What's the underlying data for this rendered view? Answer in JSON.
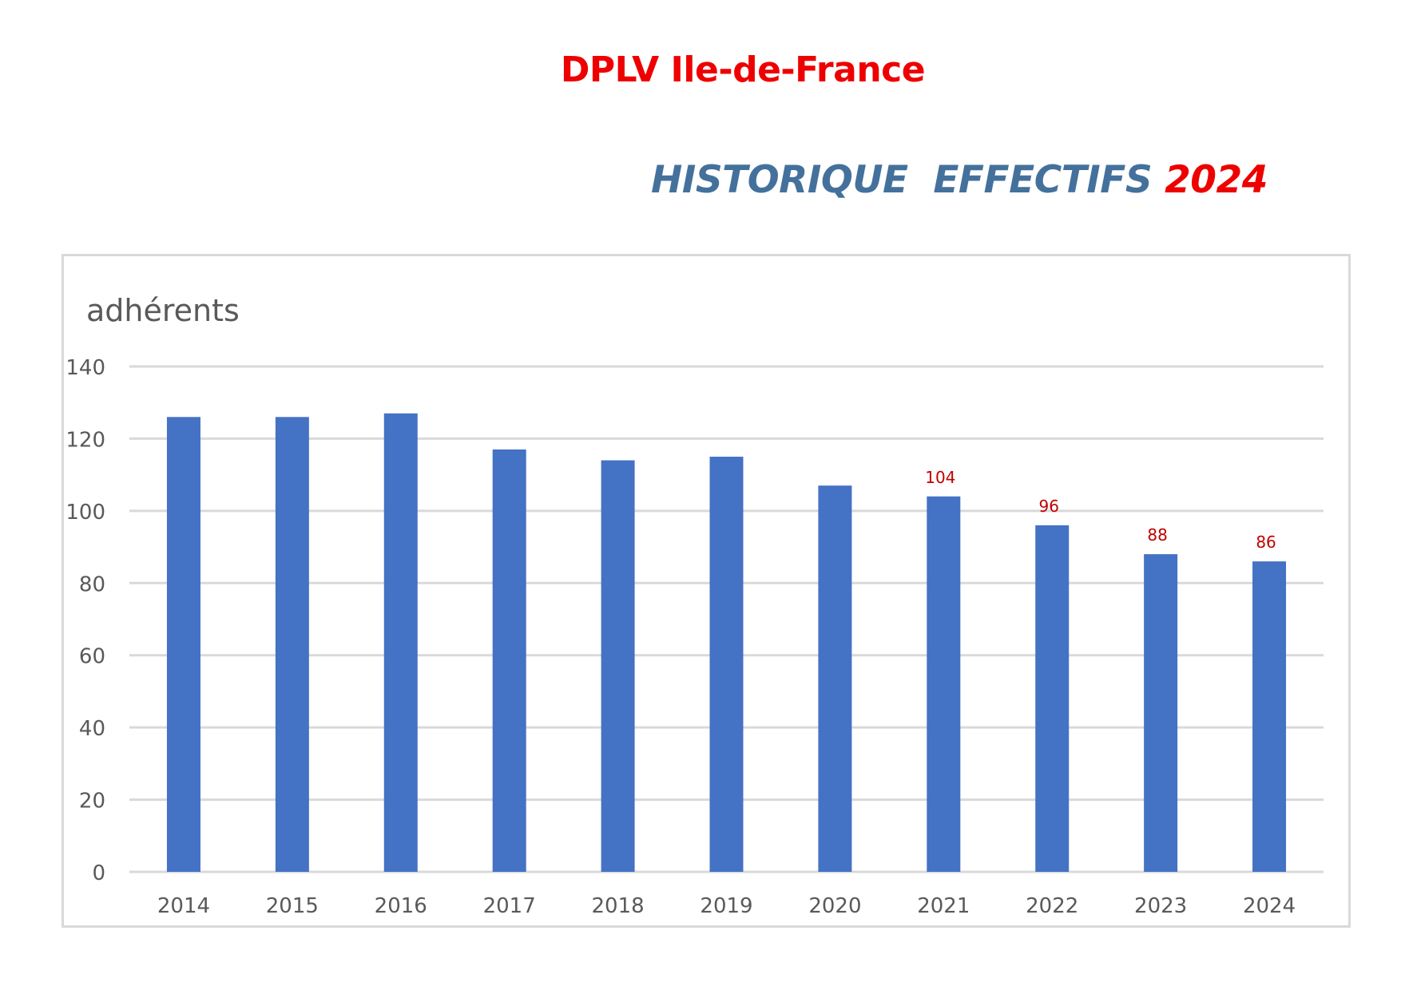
{
  "header": {
    "org_title": "DPLV Ile-de-France",
    "report_title": "HISTORIQUE  EFFECTIFS ",
    "report_year": "2024"
  },
  "colors": {
    "bar": "#4472c4",
    "data_label": "#c00000",
    "grid": "#d9d9d9",
    "axis_text": "#595959",
    "org_title": "#ee0000",
    "report_title": "#44719c"
  },
  "chart_data": {
    "type": "bar",
    "title": "adhérents",
    "xlabel": "",
    "ylabel": "",
    "categories": [
      "2014",
      "2015",
      "2016",
      "2017",
      "2018",
      "2019",
      "2020",
      "2021",
      "2022",
      "2023",
      "2024"
    ],
    "values": [
      126,
      126,
      127,
      117,
      114,
      115,
      107,
      104,
      96,
      88,
      86
    ],
    "data_labels": [
      "",
      "",
      "",
      "",
      "",
      "",
      "",
      "104",
      "96",
      "88",
      "86"
    ],
    "ylim": [
      0,
      140
    ],
    "yticks": [
      "0",
      "20",
      "40",
      "60",
      "80",
      "100",
      "120",
      "140"
    ],
    "grid": true,
    "legend": "none"
  }
}
